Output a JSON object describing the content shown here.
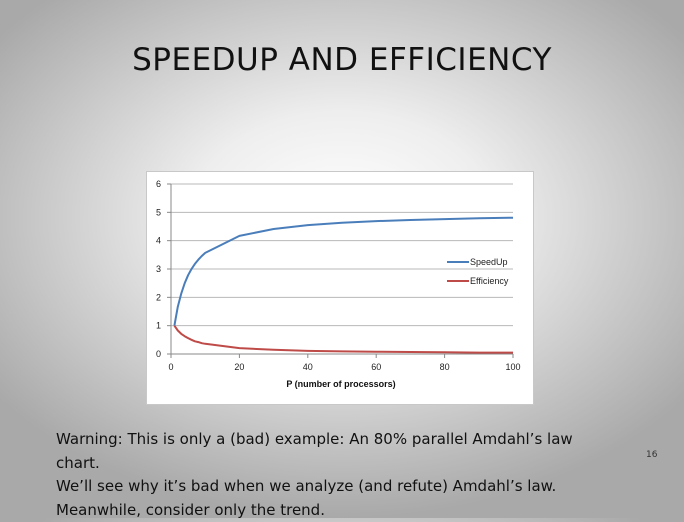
{
  "slide": {
    "title": "SPEEDUP AND EFFICIENCY",
    "page_number": "16",
    "caption_lines": [
      "Warning: This is only a (bad) example: An 80% parallel Amdahl’s law chart.",
      "We’ll see why it’s bad when we analyze (and refute) Amdahl’s law.",
      "Meanwhile, consider only the trend."
    ]
  },
  "chart_data": {
    "type": "line",
    "title": "",
    "xlabel": "P (number of processors)",
    "ylabel": "",
    "xlim": [
      0,
      100
    ],
    "ylim": [
      0,
      6
    ],
    "x_ticks": [
      0,
      20,
      40,
      60,
      80,
      100
    ],
    "y_ticks": [
      0,
      1,
      2,
      3,
      4,
      5,
      6
    ],
    "grid": "horizontal",
    "legend": "right",
    "x": [
      1,
      2,
      3,
      4,
      5,
      6,
      7,
      8,
      9,
      10,
      20,
      30,
      40,
      50,
      60,
      70,
      80,
      90,
      100
    ],
    "series": [
      {
        "name": "SpeedUp",
        "color": "#4a7ebb",
        "values": [
          1.0,
          1.67,
          2.14,
          2.5,
          2.78,
          3.0,
          3.18,
          3.33,
          3.46,
          3.57,
          4.17,
          4.41,
          4.55,
          4.63,
          4.69,
          4.73,
          4.76,
          4.79,
          4.81
        ]
      },
      {
        "name": "Efficiency",
        "color": "#be4b48",
        "values": [
          1.0,
          0.83,
          0.71,
          0.63,
          0.56,
          0.5,
          0.45,
          0.42,
          0.38,
          0.36,
          0.21,
          0.15,
          0.11,
          0.09,
          0.08,
          0.07,
          0.06,
          0.05,
          0.05
        ]
      }
    ]
  }
}
